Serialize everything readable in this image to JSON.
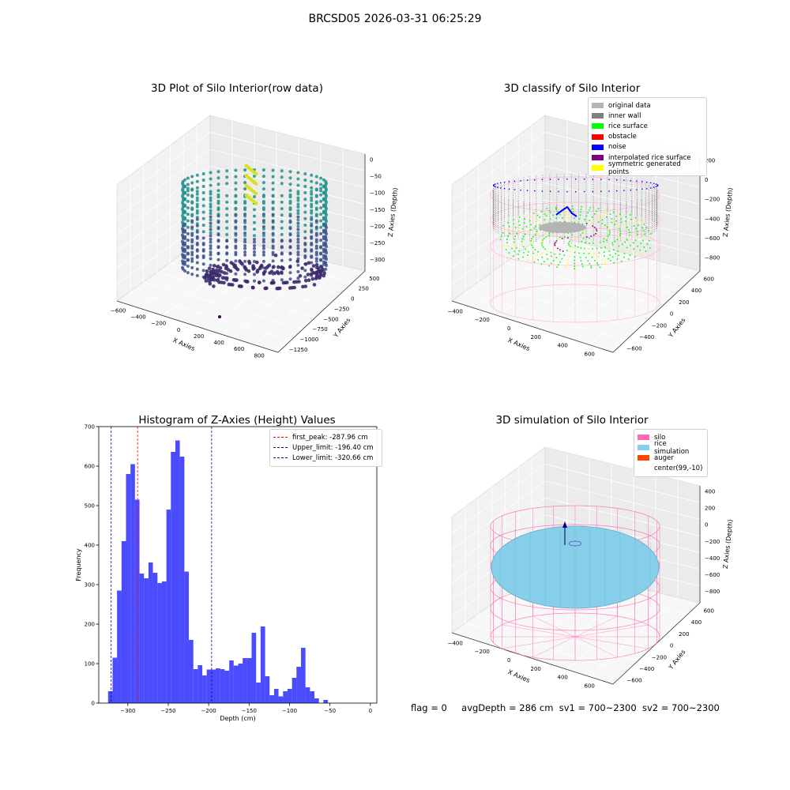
{
  "suptitle": "BRCSD05 2026-03-31 06:25:29",
  "panels": {
    "raw": {
      "title": "3D Plot of Silo Interior(row data)",
      "xlabel": "X Axies",
      "ylabel": "Y Axies",
      "zlabel": "Z Axies (Depth)",
      "xticks": [
        "−600",
        "−400",
        "−200",
        "0",
        "200",
        "400",
        "600",
        "800"
      ],
      "yticks": [
        "500",
        "250",
        "0",
        "−250",
        "−500",
        "−750",
        "−1000",
        "−1250"
      ],
      "zticks": [
        "0",
        "−50",
        "−100",
        "−150",
        "−200",
        "−250",
        "−300"
      ]
    },
    "classify": {
      "title": "3D classify of Silo Interior",
      "xlabel": "X Axies",
      "ylabel": "Y Axies",
      "zlabel": "Z Axies (Depth)",
      "xticks": [
        "−400",
        "−200",
        "0",
        "200",
        "400",
        "600"
      ],
      "yticks": [
        "600",
        "400",
        "200",
        "0",
        "−200",
        "−400",
        "−600"
      ],
      "zticks": [
        "200",
        "0",
        "−200",
        "−400",
        "−600",
        "−800"
      ],
      "legend": [
        {
          "label": "original data",
          "color": "#b4b4b4"
        },
        {
          "label": "inner wall",
          "color": "#808080"
        },
        {
          "label": "rice surface",
          "color": "#00ff00"
        },
        {
          "label": "obstacle",
          "color": "#ff0000"
        },
        {
          "label": "noise",
          "color": "#0000ff"
        },
        {
          "label": "interpolated rice surface",
          "color": "#800080"
        },
        {
          "label": "symmetric generated points",
          "color": "#ffff00"
        }
      ]
    },
    "simulation": {
      "title": "3D simulation of Silo Interior",
      "xlabel": "X Axies",
      "ylabel": "Y Axies",
      "zlabel": "Z Axies (Depth)",
      "xticks": [
        "−400",
        "−200",
        "0",
        "200",
        "400",
        "600"
      ],
      "yticks": [
        "600",
        "400",
        "200",
        "0",
        "−200",
        "−400",
        "−600"
      ],
      "zticks": [
        "400",
        "200",
        "0",
        "−200",
        "−400",
        "−600",
        "−800"
      ],
      "legend": [
        {
          "label": "silo",
          "color": "#ff69b4"
        },
        {
          "label": "rice simulation",
          "color": "#87ceeb"
        },
        {
          "label": "auger",
          "color": "#ff4500"
        },
        {
          "label": "center(99,-10)",
          "color": ""
        }
      ]
    }
  },
  "chart_data": {
    "type": "bar",
    "title": "Histogram of Z-Axies (Height) Values",
    "xlabel": "Depth (cm)",
    "ylabel": "Frequency",
    "xlim": [
      -336,
      8
    ],
    "ylim": [
      0,
      700
    ],
    "xticks": [
      -300,
      -250,
      -200,
      -150,
      -100,
      -50,
      0
    ],
    "yticks": [
      0,
      100,
      200,
      300,
      400,
      500,
      600,
      700
    ],
    "bar_color": "#0000ff",
    "bins": [
      {
        "x0": -324.5,
        "x1": -318.9,
        "count": 30
      },
      {
        "x0": -318.9,
        "x1": -313.4,
        "count": 115
      },
      {
        "x0": -313.4,
        "x1": -307.8,
        "count": 285
      },
      {
        "x0": -307.8,
        "x1": -302.3,
        "count": 410
      },
      {
        "x0": -302.3,
        "x1": -296.7,
        "count": 580
      },
      {
        "x0": -296.7,
        "x1": -291.2,
        "count": 605
      },
      {
        "x0": -291.2,
        "x1": -285.6,
        "count": 515
      },
      {
        "x0": -285.6,
        "x1": -280.1,
        "count": 328
      },
      {
        "x0": -280.1,
        "x1": -274.5,
        "count": 316
      },
      {
        "x0": -274.5,
        "x1": -269.0,
        "count": 356
      },
      {
        "x0": -269.0,
        "x1": -263.4,
        "count": 330
      },
      {
        "x0": -263.4,
        "x1": -257.9,
        "count": 304
      },
      {
        "x0": -257.9,
        "x1": -252.3,
        "count": 308
      },
      {
        "x0": -252.3,
        "x1": -246.8,
        "count": 490
      },
      {
        "x0": -246.8,
        "x1": -241.2,
        "count": 636
      },
      {
        "x0": -241.2,
        "x1": -235.7,
        "count": 665
      },
      {
        "x0": -235.7,
        "x1": -230.1,
        "count": 624
      },
      {
        "x0": -230.1,
        "x1": -224.6,
        "count": 333
      },
      {
        "x0": -224.6,
        "x1": -219.0,
        "count": 160
      },
      {
        "x0": -219.0,
        "x1": -213.5,
        "count": 86
      },
      {
        "x0": -213.5,
        "x1": -207.9,
        "count": 96
      },
      {
        "x0": -207.9,
        "x1": -202.4,
        "count": 70
      },
      {
        "x0": -202.4,
        "x1": -196.8,
        "count": 85
      },
      {
        "x0": -196.8,
        "x1": -191.3,
        "count": 85
      },
      {
        "x0": -191.3,
        "x1": -185.7,
        "count": 88
      },
      {
        "x0": -185.7,
        "x1": -180.2,
        "count": 86
      },
      {
        "x0": -180.2,
        "x1": -174.6,
        "count": 82
      },
      {
        "x0": -174.6,
        "x1": -169.1,
        "count": 108
      },
      {
        "x0": -169.1,
        "x1": -163.5,
        "count": 95
      },
      {
        "x0": -163.5,
        "x1": -158.0,
        "count": 100
      },
      {
        "x0": -158.0,
        "x1": -152.4,
        "count": 114
      },
      {
        "x0": -152.4,
        "x1": -146.9,
        "count": 114
      },
      {
        "x0": -146.9,
        "x1": -141.3,
        "count": 178
      },
      {
        "x0": -141.3,
        "x1": -135.8,
        "count": 52
      },
      {
        "x0": -135.8,
        "x1": -130.2,
        "count": 194
      },
      {
        "x0": -130.2,
        "x1": -124.7,
        "count": 68
      },
      {
        "x0": -124.7,
        "x1": -119.1,
        "count": 20
      },
      {
        "x0": -119.1,
        "x1": -113.6,
        "count": 36
      },
      {
        "x0": -113.6,
        "x1": -108.0,
        "count": 17
      },
      {
        "x0": -108.0,
        "x1": -102.5,
        "count": 30
      },
      {
        "x0": -102.5,
        "x1": -96.9,
        "count": 36
      },
      {
        "x0": -96.9,
        "x1": -91.4,
        "count": 64
      },
      {
        "x0": -91.4,
        "x1": -85.8,
        "count": 92
      },
      {
        "x0": -85.8,
        "x1": -80.3,
        "count": 140
      },
      {
        "x0": -80.3,
        "x1": -74.7,
        "count": 40
      },
      {
        "x0": -74.7,
        "x1": -69.2,
        "count": 30
      },
      {
        "x0": -69.2,
        "x1": -63.6,
        "count": 12
      },
      {
        "x0": -63.6,
        "x1": -58.1,
        "count": 0
      },
      {
        "x0": -58.1,
        "x1": -52.5,
        "count": 8
      }
    ],
    "vlines": [
      {
        "label": "first_peak: -287.96 cm",
        "x": -287.96,
        "color": "#ff0000"
      },
      {
        "label": "Upper_limit: -196.40 cm",
        "x": -196.4,
        "color": "#00008b"
      },
      {
        "label": "Lower_limit: -320.66 cm",
        "x": -320.66,
        "color": "#00008b"
      }
    ]
  },
  "footer": {
    "flag": "flag = 0",
    "avg": "avgDepth = 286 cm",
    "sv1": "sv1 = 700~2300",
    "sv2": "sv2 = 700~2300"
  }
}
